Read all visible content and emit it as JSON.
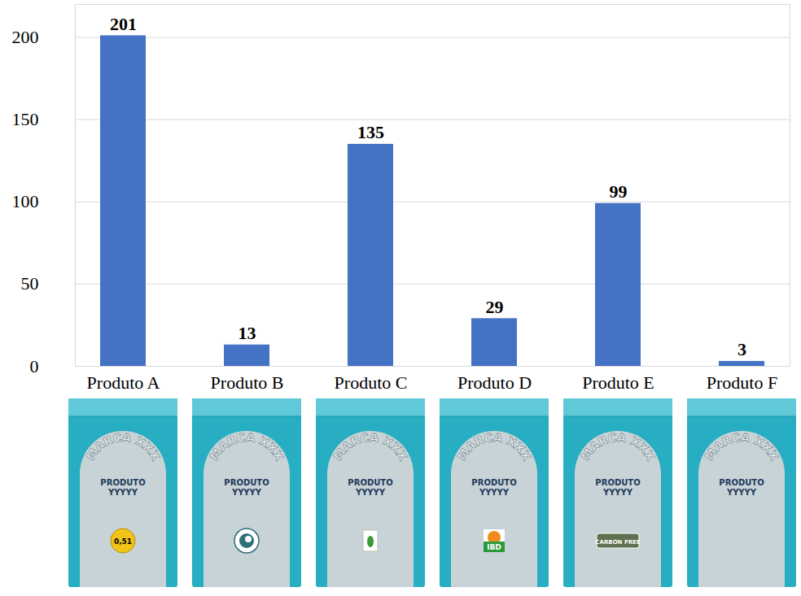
{
  "chart_data": {
    "type": "bar",
    "categories": [
      "Produto A",
      "Produto B",
      "Produto C",
      "Produto D",
      "Produto E",
      "Produto F"
    ],
    "values": [
      201,
      13,
      135,
      29,
      99,
      3
    ],
    "color": "#4472c4",
    "ylim": [
      0,
      220
    ],
    "yticks": [
      0,
      50,
      100,
      150,
      200
    ],
    "grid": true,
    "data_labels": true,
    "packages": {
      "brand": "MARCA XXX",
      "product": "PRODUTO YYYYY",
      "seals": [
        "0,51",
        null,
        null,
        "IBD",
        "CARBON FREE",
        null
      ]
    }
  }
}
